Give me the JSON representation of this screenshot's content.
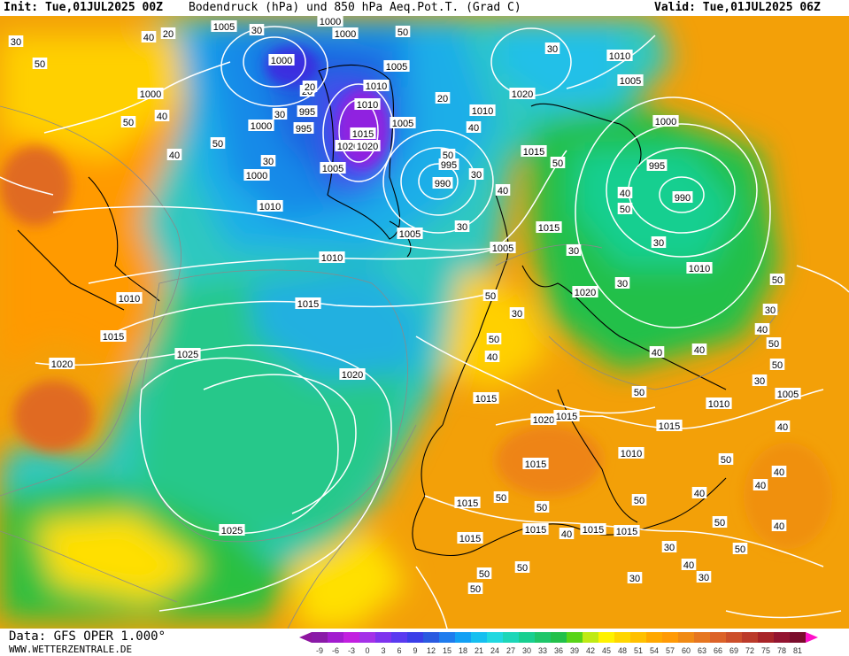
{
  "header": {
    "init": "Init: Tue,01JUL2025 00Z",
    "title": "Bodendruck (hPa) und 850 hPa Aeq.Pot.T. (Grad C)",
    "valid": "Valid: Tue,01JUL2025 06Z"
  },
  "footer": {
    "data_source": "Data: GFS OPER 1.000°",
    "website": "WWW.WETTERZENTRALE.DE"
  },
  "colorbar": {
    "ticks": [
      "-9",
      "-6",
      "-3",
      "0",
      "3",
      "6",
      "9",
      "12",
      "15",
      "18",
      "21",
      "24",
      "27",
      "30",
      "33",
      "36",
      "39",
      "42",
      "45",
      "48",
      "51",
      "54",
      "57",
      "60",
      "63",
      "66",
      "69",
      "72",
      "75",
      "78",
      "81"
    ],
    "colors": [
      "#8a1aa8",
      "#a21ccf",
      "#c21fe0",
      "#a431e8",
      "#7e33ee",
      "#5a3af0",
      "#3a3ee8",
      "#2a5ae0",
      "#1e7cee",
      "#12a0f4",
      "#15bff0",
      "#20d8e0",
      "#1cd6b8",
      "#18cf90",
      "#1ec66a",
      "#22c04a",
      "#58d418",
      "#bfea14",
      "#fff200",
      "#ffd600",
      "#ffc000",
      "#ffa800",
      "#ff9a06",
      "#f08a14",
      "#e67620",
      "#dc6228",
      "#cc4e2a",
      "#bb3a2a",
      "#a82428",
      "#931430",
      "#7a0c2c"
    ],
    "left_arrow_color": "#8e16a0",
    "right_arrow_color": "#ff10c8"
  },
  "map": {
    "pressure_labels": [
      "1005",
      "1000",
      "1000",
      "1005",
      "1000",
      "1010",
      "1000",
      "995",
      "1010",
      "995",
      "1015",
      "1020",
      "1020",
      "1005",
      "1000",
      "1000",
      "995",
      "990",
      "1005",
      "1010",
      "1005",
      "1020",
      "1015",
      "1010",
      "1005",
      "1000",
      "995",
      "990",
      "1015",
      "1010",
      "1010",
      "1005",
      "1010",
      "1020",
      "1015",
      "1010",
      "1015",
      "1020",
      "1025",
      "1020",
      "1015",
      "1020",
      "1015",
      "1005",
      "1010",
      "1015",
      "1015",
      "1015",
      "1015",
      "1015",
      "1025",
      "1015",
      "1010",
      "1015"
    ],
    "theta_labels": [
      "20",
      "30",
      "50",
      "40",
      "30",
      "20",
      "40",
      "50",
      "30",
      "20",
      "30",
      "50",
      "40",
      "20",
      "50",
      "40",
      "50",
      "30",
      "30",
      "40",
      "50",
      "40",
      "30",
      "50",
      "50",
      "40",
      "30",
      "30",
      "50",
      "30",
      "40",
      "50",
      "50",
      "30",
      "30",
      "40",
      "40",
      "50",
      "30",
      "50",
      "40",
      "50",
      "40",
      "40",
      "50",
      "50",
      "30",
      "50",
      "40",
      "40",
      "40",
      "30",
      "30",
      "50",
      "50",
      "50",
      "50",
      "40",
      "50"
    ]
  },
  "colors": {
    "isobar": "#ffffff",
    "coastline": "#000000",
    "theta_contour": "#8a8a8a"
  }
}
